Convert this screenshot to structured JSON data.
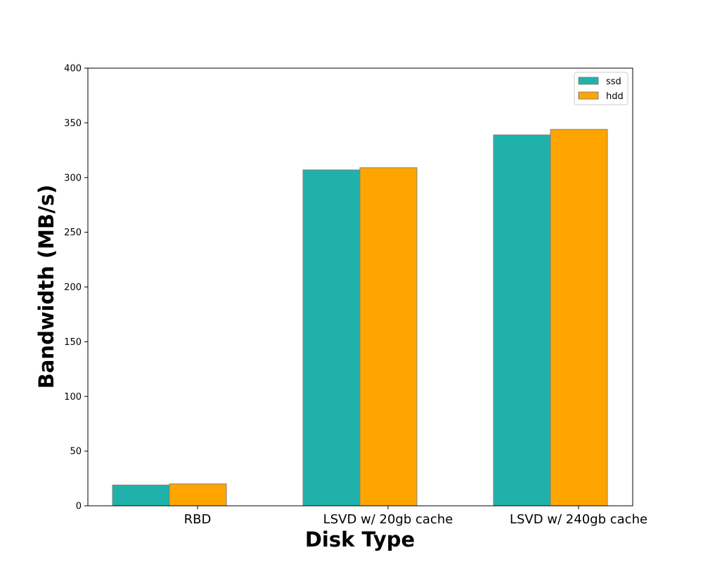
{
  "chart_data": {
    "type": "bar",
    "title": "",
    "xlabel": "Disk Type",
    "ylabel": "Bandwidth (MB/s)",
    "categories": [
      "RBD",
      "LSVD w/ 20gb cache",
      "LSVD w/ 240gb cache"
    ],
    "series": [
      {
        "name": "ssd",
        "color": "#20b2aa",
        "values": [
          19,
          307,
          339
        ]
      },
      {
        "name": "hdd",
        "color": "#ffa500",
        "values": [
          20,
          309,
          344
        ]
      }
    ],
    "ylim": [
      0,
      400
    ],
    "yticks": [
      "0",
      "50",
      "100",
      "150",
      "200",
      "250",
      "300",
      "350",
      "400"
    ],
    "grid": false,
    "legend_position": "top-right",
    "bar_edge_color": "#808080"
  }
}
